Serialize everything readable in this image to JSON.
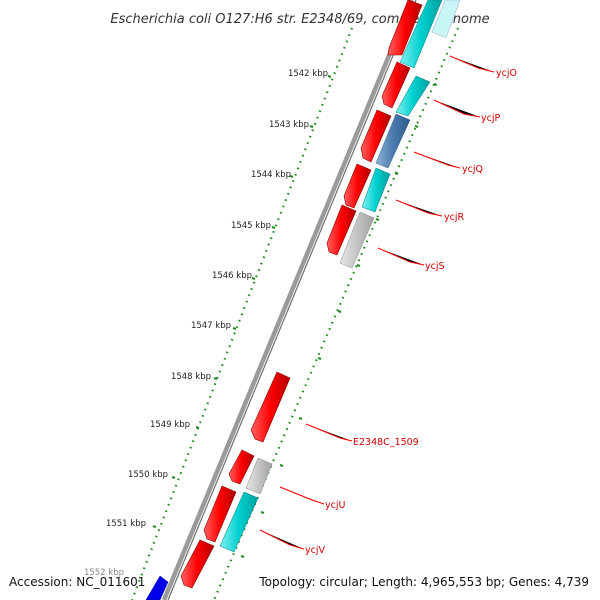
{
  "title": "Escherichia coli O127:H6 str. E2348/69, complete genome",
  "footer": {
    "accession": "Accession: NC_011601",
    "topology": "Topology: circular; Length: 4,965,553 bp; Genes: 4,739"
  },
  "scale_labels": [
    {
      "label": "1542 kbp"
    },
    {
      "label": "1543 kbp"
    },
    {
      "label": "1544 kbp"
    },
    {
      "label": "1545 kbp"
    },
    {
      "label": "1546 kbp"
    },
    {
      "label": "1547 kbp"
    },
    {
      "label": "1548 kbp"
    },
    {
      "label": "1549 kbp"
    },
    {
      "label": "1550 kbp"
    },
    {
      "label": "1551 kbp"
    },
    {
      "label": "1552 kbp"
    }
  ],
  "gene_labels": [
    {
      "name": "ycjO"
    },
    {
      "name": "ycjP"
    },
    {
      "name": "ycjQ"
    },
    {
      "name": "ycjR"
    },
    {
      "name": "ycjS"
    },
    {
      "name": "E2348C_1509"
    },
    {
      "name": "ycjU"
    },
    {
      "name": "ycjV"
    }
  ],
  "colors": {
    "cds": "#ff0000",
    "cds_dark": "#b30000",
    "cyan": "#00c8c8",
    "grey": "#c0c0c0",
    "steel": "#4a7ab0",
    "blue": "#0000ee",
    "backbone": "#888888",
    "ticks": "#228b22",
    "label_line": "#ff0000"
  }
}
